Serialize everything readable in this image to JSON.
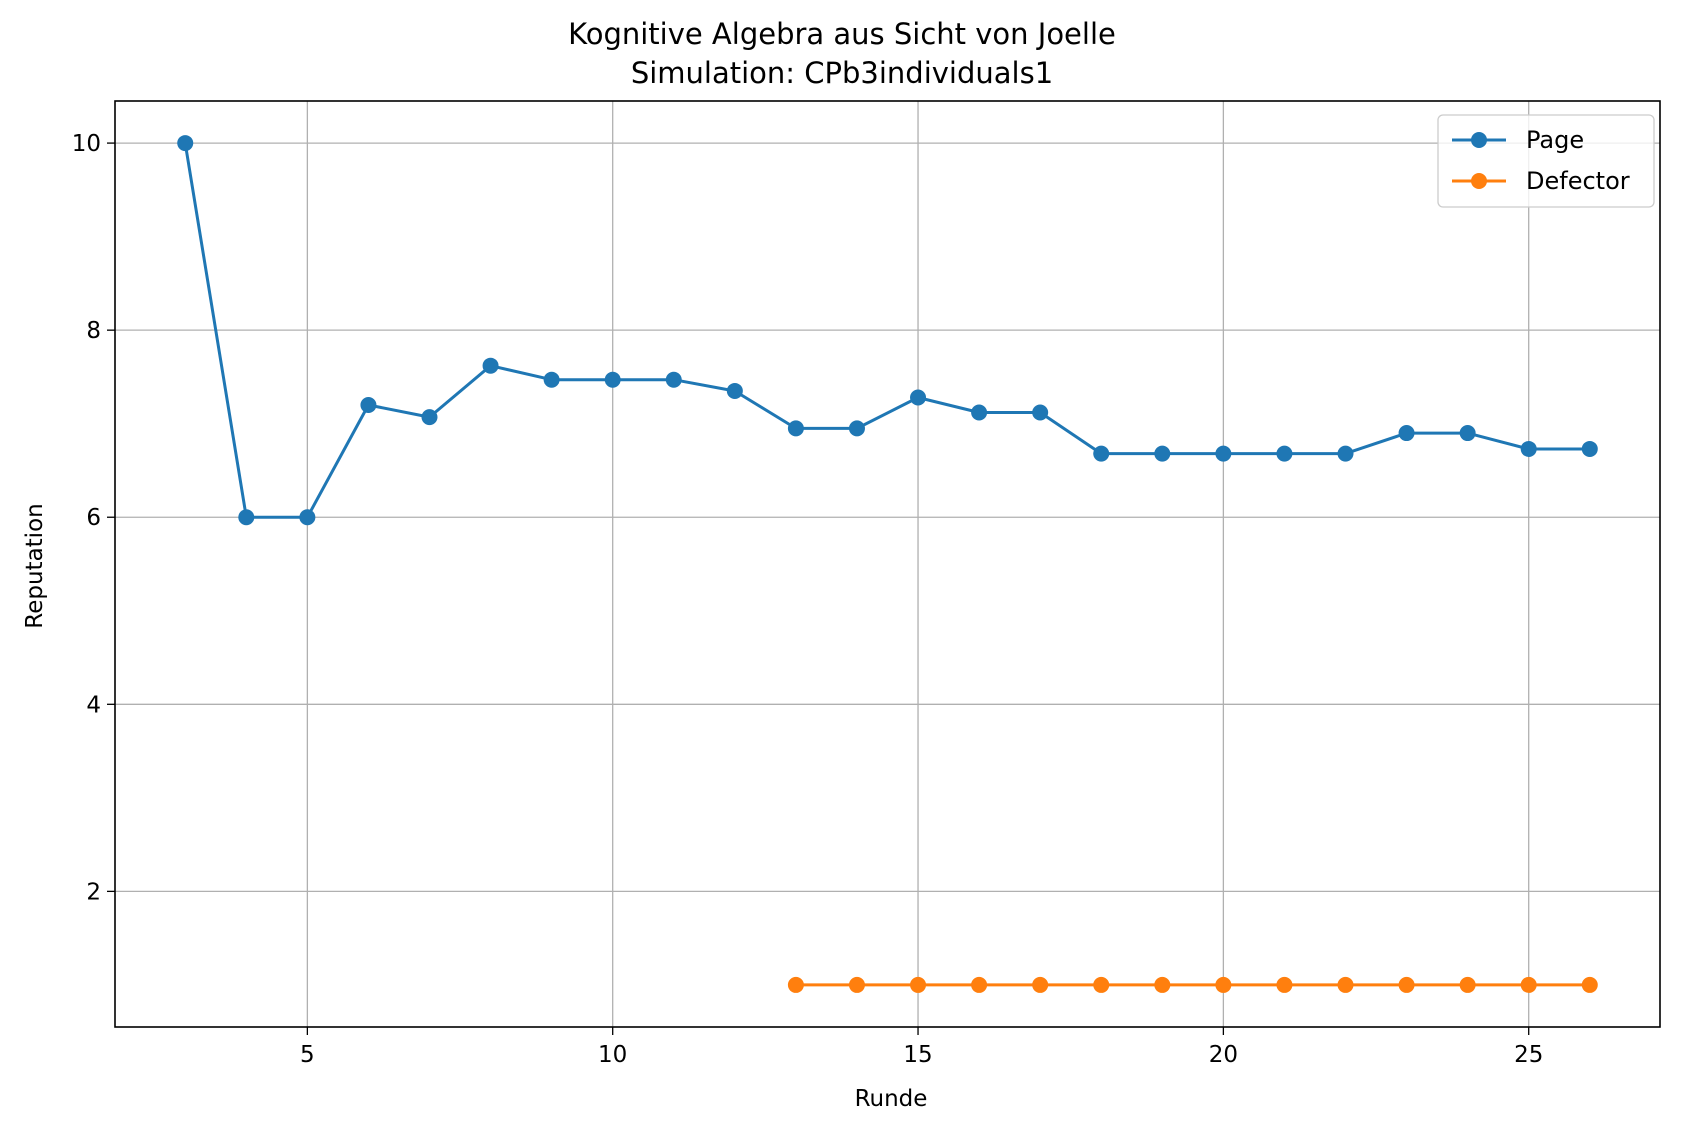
{
  "chart_data": {
    "type": "line",
    "title": "Kognitive Algebra aus Sicht von Joelle",
    "subtitle": "Simulation: CPb3individuals1",
    "xlabel": "Runde",
    "ylabel": "Reputation",
    "xlim": [
      1.85,
      27.15
    ],
    "ylim": [
      0.55,
      10.45
    ],
    "xticks": [
      5,
      10,
      15,
      20,
      25
    ],
    "yticks": [
      2,
      4,
      6,
      8,
      10
    ],
    "xtick_labels": [
      "5",
      "10",
      "15",
      "20",
      "25"
    ],
    "ytick_labels": [
      "2",
      "4",
      "6",
      "8",
      "10"
    ],
    "grid": true,
    "legend_position": "top-right",
    "series": [
      {
        "name": "Page",
        "color": "#1f77b4",
        "x": [
          3,
          4,
          5,
          6,
          7,
          8,
          9,
          10,
          11,
          12,
          13,
          14,
          15,
          16,
          17,
          18,
          19,
          20,
          21,
          22,
          23,
          24,
          25,
          26
        ],
        "y": [
          10.0,
          6.0,
          6.0,
          7.2,
          7.07,
          7.62,
          7.47,
          7.47,
          7.47,
          7.35,
          6.95,
          6.95,
          7.28,
          7.12,
          7.12,
          6.68,
          6.68,
          6.68,
          6.68,
          6.68,
          6.9,
          6.9,
          6.73,
          6.73
        ]
      },
      {
        "name": "Defector",
        "color": "#ff7f0e",
        "x": [
          13,
          14,
          15,
          16,
          17,
          18,
          19,
          20,
          21,
          22,
          23,
          24,
          25,
          26
        ],
        "y": [
          1.0,
          1.0,
          1.0,
          1.0,
          1.0,
          1.0,
          1.0,
          1.0,
          1.0,
          1.0,
          1.0,
          1.0,
          1.0,
          1.0
        ]
      }
    ]
  }
}
